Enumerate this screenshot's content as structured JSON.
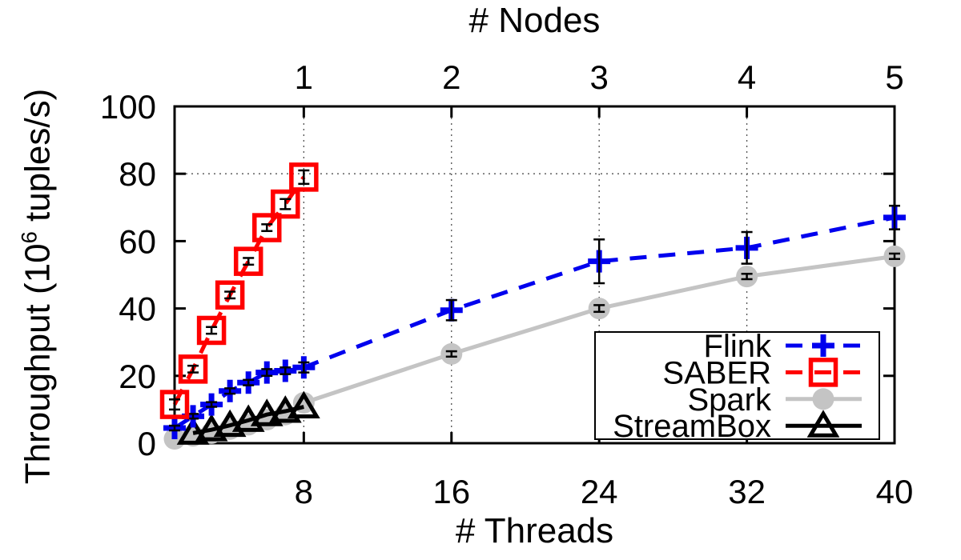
{
  "chart_data": {
    "type": "line",
    "x2label": "# Nodes",
    "xlabel": "# Threads",
    "ylabel": "Throughput (10^6 tuples/s)",
    "ylabel_parts": {
      "prefix": "Throughput (10",
      "sup": "6",
      "suffix": " tuples/s)"
    },
    "xlim": [
      1,
      40
    ],
    "ylim": [
      0,
      100
    ],
    "x_ticks": [
      8,
      16,
      24,
      32,
      40
    ],
    "x2_ticks": {
      "labels": [
        "1",
        "2",
        "3",
        "4",
        "5"
      ],
      "at": [
        8,
        16,
        24,
        32,
        40
      ]
    },
    "y_ticks": [
      0,
      20,
      40,
      60,
      80,
      100
    ],
    "grid": {
      "x_lines": [
        8,
        16,
        24,
        32
      ],
      "y_lines": [
        80
      ],
      "style": "dotted"
    },
    "legend": {
      "position": "bottom-right",
      "entries": [
        "Flink",
        "SABER",
        "Spark",
        "StreamBox"
      ]
    },
    "colors": {
      "flink": "#0000ee",
      "saber": "#ff0000",
      "spark": "#c4c4c4",
      "streambox": "#000000",
      "errorbar": "#000000",
      "grid": "#505050"
    },
    "series": [
      {
        "name": "Flink",
        "color": "#0000ee",
        "line": "dashed",
        "marker": "plus",
        "x": [
          1,
          2,
          3,
          4,
          5,
          6,
          7,
          8,
          16,
          24,
          32,
          40
        ],
        "y": [
          4.5,
          8,
          11.5,
          15.5,
          18,
          21,
          21.5,
          22.5,
          39.5,
          54,
          58,
          67
        ],
        "yerr": [
          0.7,
          0.7,
          0.7,
          0.8,
          0.8,
          1,
          1,
          1.5,
          3,
          6.5,
          4.7,
          3.5
        ]
      },
      {
        "name": "SABER",
        "color": "#ff0000",
        "line": "dashed",
        "marker": "square",
        "x": [
          1,
          2,
          3,
          4,
          5,
          6,
          7,
          8
        ],
        "y": [
          11.5,
          22,
          33.5,
          44,
          54,
          64,
          71,
          79
        ],
        "yerr": [
          1.5,
          1,
          1,
          1,
          1,
          1,
          1.5,
          2
        ]
      },
      {
        "name": "Spark",
        "color": "#c4c4c4",
        "line": "solid",
        "marker": "circle",
        "x": [
          1,
          2,
          3,
          4,
          5,
          6,
          7,
          8,
          16,
          24,
          32,
          40
        ],
        "y": [
          1.3,
          2.2,
          3,
          4.2,
          5.5,
          7,
          8.5,
          12,
          26.5,
          40,
          49.5,
          55.5
        ],
        "yerr": [
          0,
          0,
          0,
          0,
          0,
          0,
          0,
          0,
          0.8,
          1,
          0.8,
          0.8
        ]
      },
      {
        "name": "StreamBox",
        "color": "#000000",
        "line": "solid",
        "marker": "triangle",
        "x": [
          2,
          3,
          4,
          5,
          6,
          7,
          8
        ],
        "y": [
          3,
          4,
          5.3,
          6.8,
          8.5,
          9.5,
          10.8
        ],
        "yerr": [
          0,
          0,
          0,
          0,
          0,
          0,
          0
        ]
      }
    ]
  }
}
